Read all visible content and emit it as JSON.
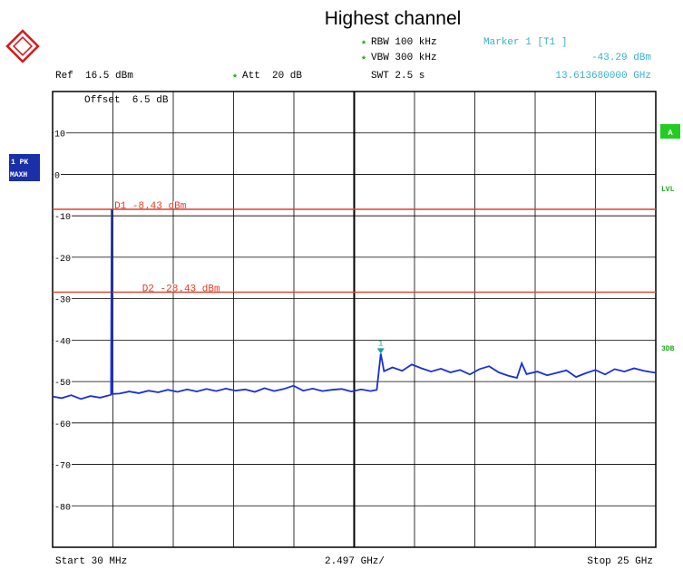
{
  "chart_data": {
    "type": "line",
    "title": "Highest channel",
    "settings": {
      "rbw": "RBW 100 kHz",
      "vbw": "VBW 300 kHz",
      "swt": "SWT 2.5 s",
      "ref": "Ref  16.5 dBm",
      "att": "Att  20 dB",
      "offset": "Offset  6.5 dB",
      "marker_label": "Marker 1 [T1 ]",
      "marker_level": "-43.29 dBm",
      "marker_freq": "13.613680000 GHz",
      "start": "Start 30 MHz",
      "span_div": "2.497 GHz/",
      "stop": "Stop 25 GHz"
    },
    "side_labels": {
      "trace": [
        "1 PK",
        "MAXH"
      ],
      "a": "A",
      "lvl": "LVL",
      "db3": "3DB"
    },
    "xlim": [
      0.03,
      25.0
    ],
    "ylim": [
      -90,
      20
    ],
    "yticks": [
      10,
      0,
      -10,
      -20,
      -30,
      -40,
      -50,
      -60,
      -70,
      -80
    ],
    "ytick_labels": [
      "10",
      "0",
      "-10",
      "-20",
      "-30",
      "-40",
      "-50",
      "-60",
      "-70",
      "-80"
    ],
    "grid": true,
    "colors": {
      "trace": "#1a2fd6",
      "display_line": "#e0402a",
      "marker": "#13a39a",
      "green": "#22cc22",
      "label_blue": "#1a2fa8",
      "cyan_text": "#3ab0c8"
    },
    "display_lines": [
      {
        "name": "D1",
        "label": "D1 -8.43 dBm",
        "value": -8.43
      },
      {
        "name": "D2",
        "label": "D2 -28.43 dBm",
        "value": -28.43
      }
    ],
    "marker": {
      "label": "1",
      "x_ghz": 13.61368,
      "y_dbm": -43.29
    },
    "series": [
      {
        "points": [
          [
            0.03,
            -53.6
          ],
          [
            0.4,
            -54.0
          ],
          [
            0.8,
            -53.3
          ],
          [
            1.2,
            -54.2
          ],
          [
            1.6,
            -53.5
          ],
          [
            2.0,
            -53.9
          ],
          [
            2.45,
            -53.2
          ],
          [
            2.474,
            -8.43
          ],
          [
            2.49,
            -53.0
          ],
          [
            2.8,
            -52.9
          ],
          [
            3.2,
            -52.4
          ],
          [
            3.6,
            -52.8
          ],
          [
            4.0,
            -52.2
          ],
          [
            4.4,
            -52.6
          ],
          [
            4.8,
            -52.0
          ],
          [
            5.2,
            -52.5
          ],
          [
            5.6,
            -51.9
          ],
          [
            6.0,
            -52.4
          ],
          [
            6.4,
            -51.8
          ],
          [
            6.8,
            -52.3
          ],
          [
            7.2,
            -51.7
          ],
          [
            7.6,
            -52.2
          ],
          [
            8.0,
            -51.9
          ],
          [
            8.4,
            -52.5
          ],
          [
            8.8,
            -51.6
          ],
          [
            9.2,
            -52.3
          ],
          [
            9.6,
            -51.8
          ],
          [
            10.0,
            -51.0
          ],
          [
            10.4,
            -52.2
          ],
          [
            10.8,
            -51.7
          ],
          [
            11.2,
            -52.3
          ],
          [
            11.6,
            -52.0
          ],
          [
            12.0,
            -51.8
          ],
          [
            12.4,
            -52.4
          ],
          [
            12.8,
            -51.9
          ],
          [
            13.2,
            -52.3
          ],
          [
            13.45,
            -52.0
          ],
          [
            13.61368,
            -43.29
          ],
          [
            13.75,
            -47.5
          ],
          [
            14.1,
            -46.6
          ],
          [
            14.5,
            -47.4
          ],
          [
            14.9,
            -45.9
          ],
          [
            15.3,
            -46.8
          ],
          [
            15.7,
            -47.6
          ],
          [
            16.1,
            -46.9
          ],
          [
            16.5,
            -47.8
          ],
          [
            16.9,
            -47.2
          ],
          [
            17.3,
            -48.3
          ],
          [
            17.7,
            -47.0
          ],
          [
            18.1,
            -46.3
          ],
          [
            18.5,
            -47.8
          ],
          [
            18.9,
            -48.6
          ],
          [
            19.25,
            -49.1
          ],
          [
            19.45,
            -45.6
          ],
          [
            19.65,
            -48.2
          ],
          [
            20.1,
            -47.6
          ],
          [
            20.5,
            -48.5
          ],
          [
            20.9,
            -47.9
          ],
          [
            21.3,
            -47.3
          ],
          [
            21.7,
            -48.9
          ],
          [
            22.1,
            -48.0
          ],
          [
            22.5,
            -47.2
          ],
          [
            22.9,
            -48.3
          ],
          [
            23.3,
            -47.0
          ],
          [
            23.7,
            -47.6
          ],
          [
            24.1,
            -46.8
          ],
          [
            24.5,
            -47.4
          ],
          [
            25.0,
            -47.9
          ]
        ]
      }
    ]
  },
  "logo": {
    "name": "rohde-schwarz-logo",
    "text": "R&S"
  }
}
